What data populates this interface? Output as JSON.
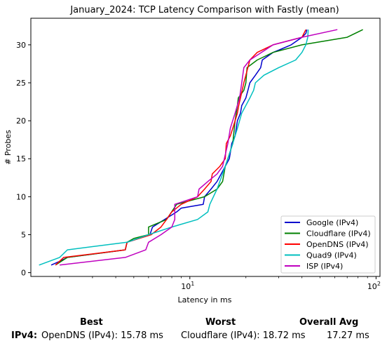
{
  "chart_data": {
    "type": "line",
    "title": "January_2024: TCP Latency Comparison with Fastly (mean)",
    "xlabel": "Latency in ms",
    "ylabel": "# Probes",
    "xscale": "log",
    "xlim": [
      1.4,
      105
    ],
    "ylim": [
      -0.5,
      33.5
    ],
    "xticks": [
      {
        "value": 10,
        "label": "10^1"
      },
      {
        "value": 100,
        "label": "10^2"
      }
    ],
    "yticks": [
      0,
      5,
      10,
      15,
      20,
      25,
      30
    ],
    "grid": false,
    "legend_position": "bottom-right",
    "series": [
      {
        "name": "Google (IPv4)",
        "color": "#0000cc",
        "points": [
          [
            1.8,
            1
          ],
          [
            2.0,
            1.5
          ],
          [
            2.2,
            2
          ],
          [
            4.5,
            3
          ],
          [
            4.6,
            4
          ],
          [
            6.1,
            5
          ],
          [
            6.3,
            6
          ],
          [
            8.5,
            8
          ],
          [
            9.0,
            8.5
          ],
          [
            11.8,
            9
          ],
          [
            12.0,
            10
          ],
          [
            13,
            11
          ],
          [
            14,
            12
          ],
          [
            15.5,
            14
          ],
          [
            16.3,
            15
          ],
          [
            16.8,
            17
          ],
          [
            17.5,
            18
          ],
          [
            18.0,
            20
          ],
          [
            18.7,
            21
          ],
          [
            19.0,
            22
          ],
          [
            20.0,
            23
          ],
          [
            20.5,
            24
          ],
          [
            21.0,
            25
          ],
          [
            22.5,
            26
          ],
          [
            24.0,
            27
          ],
          [
            24.5,
            28
          ],
          [
            28.0,
            29
          ],
          [
            30.0,
            29.3
          ],
          [
            35.0,
            30
          ],
          [
            40.0,
            31
          ],
          [
            42.0,
            31.5
          ],
          [
            42.5,
            32
          ]
        ]
      },
      {
        "name": "Cloudflare (IPv4)",
        "color": "#008000",
        "points": [
          [
            1.9,
            1
          ],
          [
            2.2,
            2
          ],
          [
            4.5,
            3
          ],
          [
            4.6,
            4
          ],
          [
            5.0,
            4.5
          ],
          [
            6.0,
            5
          ],
          [
            6.0,
            6
          ],
          [
            7.5,
            7
          ],
          [
            8.5,
            9
          ],
          [
            12.0,
            10
          ],
          [
            14.0,
            11
          ],
          [
            15.0,
            12
          ],
          [
            15.5,
            14
          ],
          [
            16.5,
            16
          ],
          [
            17.0,
            17
          ],
          [
            17.5,
            20
          ],
          [
            18.0,
            22
          ],
          [
            18.2,
            23
          ],
          [
            19.5,
            24
          ],
          [
            20.0,
            25
          ],
          [
            20.3,
            27
          ],
          [
            23.0,
            28
          ],
          [
            28.0,
            29
          ],
          [
            40.0,
            30
          ],
          [
            70.0,
            31
          ],
          [
            85.0,
            32
          ]
        ]
      },
      {
        "name": "OpenDNS (IPv4)",
        "color": "#ff0000",
        "points": [
          [
            1.9,
            1
          ],
          [
            2.1,
            2
          ],
          [
            4.5,
            3
          ],
          [
            4.6,
            4
          ],
          [
            6.2,
            5
          ],
          [
            7.0,
            6
          ],
          [
            7.5,
            7
          ],
          [
            8.0,
            8
          ],
          [
            9.0,
            9
          ],
          [
            11.0,
            10
          ],
          [
            12.0,
            11
          ],
          [
            13.0,
            12
          ],
          [
            13.2,
            13
          ],
          [
            14.5,
            14
          ],
          [
            15.5,
            15
          ],
          [
            15.7,
            17
          ],
          [
            16.5,
            18
          ],
          [
            17.0,
            19
          ],
          [
            17.5,
            20
          ],
          [
            18.0,
            21
          ],
          [
            18.3,
            22
          ],
          [
            18.7,
            23
          ],
          [
            19.5,
            25
          ],
          [
            20.0,
            26
          ],
          [
            21.0,
            28
          ],
          [
            23.0,
            29
          ],
          [
            28.0,
            30
          ],
          [
            40.0,
            31
          ],
          [
            42.0,
            32
          ]
        ]
      },
      {
        "name": "Quad9 (IPv4)",
        "color": "#00bfbf",
        "points": [
          [
            1.55,
            1
          ],
          [
            2.0,
            2
          ],
          [
            2.2,
            3
          ],
          [
            4.6,
            4
          ],
          [
            6.0,
            5
          ],
          [
            8.0,
            6
          ],
          [
            11.0,
            7
          ],
          [
            12.5,
            8
          ],
          [
            12.8,
            9
          ],
          [
            14.0,
            11
          ],
          [
            15.0,
            13
          ],
          [
            16.0,
            15
          ],
          [
            17.0,
            17
          ],
          [
            18.0,
            19
          ],
          [
            19.0,
            21
          ],
          [
            21.0,
            23
          ],
          [
            22.0,
            24
          ],
          [
            22.5,
            25
          ],
          [
            25.0,
            26
          ],
          [
            30.0,
            27
          ],
          [
            37.0,
            28
          ],
          [
            40.0,
            29
          ],
          [
            42.0,
            30
          ],
          [
            43.0,
            31
          ],
          [
            43.2,
            32
          ]
        ]
      },
      {
        "name": "ISP (IPv4)",
        "color": "#bf00bf",
        "points": [
          [
            2.0,
            1
          ],
          [
            4.5,
            2
          ],
          [
            5.8,
            3
          ],
          [
            6.0,
            4
          ],
          [
            7.0,
            5
          ],
          [
            8.0,
            6
          ],
          [
            8.3,
            7
          ],
          [
            8.3,
            9
          ],
          [
            11.0,
            10
          ],
          [
            11.2,
            11
          ],
          [
            12.5,
            12
          ],
          [
            14.0,
            13
          ],
          [
            15.0,
            14
          ],
          [
            16.0,
            17
          ],
          [
            16.5,
            19
          ],
          [
            17.5,
            21
          ],
          [
            18.5,
            23
          ],
          [
            19.0,
            25
          ],
          [
            19.5,
            27
          ],
          [
            21.0,
            28
          ],
          [
            28.0,
            30
          ],
          [
            40.0,
            31
          ],
          [
            62.0,
            32
          ]
        ]
      }
    ]
  },
  "summary": {
    "best_header": "Best",
    "worst_header": "Worst",
    "avg_header": "Overall Avg",
    "row_label": "IPv4",
    "row_sep": ":",
    "best": "OpenDNS (IPv4): 15.78 ms",
    "worst": "Cloudflare (IPv4): 18.72 ms",
    "avg": "17.27 ms"
  }
}
